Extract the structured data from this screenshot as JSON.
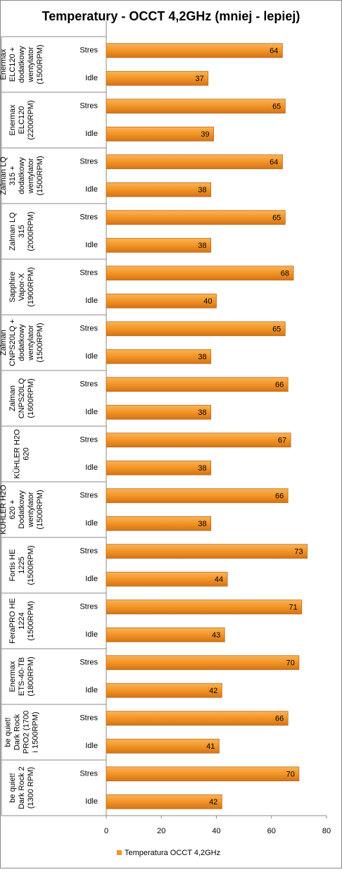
{
  "chart_data": {
    "type": "bar",
    "orientation": "horizontal",
    "title": "Temperatury - OCCT 4,2GHz (mniej - lepiej)",
    "groups": [
      "Enermax ELC120 + dodatkowy wentylator (1500RPM)",
      "Enermax ELC120 (2200RPM)",
      "Zalman LQ 315 + dodatkowy wentylator (1500RPM)",
      "Zalman LQ 315 (2000RPM)",
      "Sapphire Vapor-X (1900RPM)",
      "Zalman CNPS20LQ + dodatkowy wentylator (1500RPM)",
      "Zalman CNPS20LQ (1600RPM)",
      "KÜHLER H2O 620",
      "KÜHLER H2O 620 + Dodatkowy wentylator (1500RPM)",
      "Fortis HE 1225 (1500RPM)",
      "FeraPRO HE 1224 (1500RPM)",
      "Enermax ETS-40-TB (1800RPM)",
      "be quiet! Dark Rock PRO2 (1700 i 1500RPM)",
      "be quiet! Dark Rock 2 (1300 RPM)"
    ],
    "categories": [
      "Stres",
      "Idle",
      "Stres",
      "Idle",
      "Stres",
      "Idle",
      "Stres",
      "Idle",
      "Stres",
      "Idle",
      "Stres",
      "Idle",
      "Stres",
      "Idle",
      "Stres",
      "Idle",
      "Stres",
      "Idle",
      "Stres",
      "Idle",
      "Stres",
      "Idle",
      "Stres",
      "Idle",
      "Stres",
      "Idle",
      "Stres",
      "Idle"
    ],
    "series": [
      {
        "name": "Temperatura OCCT 4,2GHz",
        "color": "#f39425",
        "values": [
          64,
          37,
          65,
          39,
          64,
          38,
          65,
          38,
          68,
          40,
          65,
          38,
          66,
          38,
          67,
          38,
          66,
          38,
          73,
          44,
          71,
          43,
          70,
          42,
          66,
          41,
          70,
          42
        ]
      }
    ],
    "xlim": [
      0,
      80
    ],
    "xticks": [
      0,
      20,
      40,
      60,
      80
    ],
    "legend": "bottom"
  }
}
